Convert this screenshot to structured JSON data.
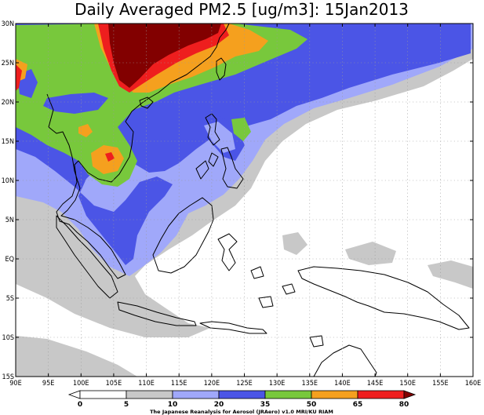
{
  "title": "Daily Averaged PM2.5 [ug/m3]: 15Jan2013",
  "map": {
    "lon_range": [
      90,
      160
    ],
    "lat_range": [
      -15,
      30
    ],
    "lon_ticks": [
      "90E",
      "95E",
      "100E",
      "105E",
      "110E",
      "115E",
      "120E",
      "125E",
      "130E",
      "135E",
      "140E",
      "145E",
      "150E",
      "155E",
      "160E"
    ],
    "lat_ticks": [
      "30N",
      "25N",
      "20N",
      "15N",
      "10N",
      "5N",
      "EQ",
      "5S",
      "10S",
      "15S"
    ],
    "gridlines": "dotted"
  },
  "colorbar": {
    "levels": [
      "0",
      "5",
      "10",
      "20",
      "35",
      "50",
      "65",
      "80"
    ],
    "colors": [
      "#ffffff",
      "#ffffff",
      "#c8c8c8",
      "#a0a8fa",
      "#4b55e6",
      "#78c83c",
      "#f5a01e",
      "#ee1e1e",
      "#820000"
    ]
  },
  "credit": "The Japanese Reanalysis for Aerosol (JRAero) v1.0 MRI/KU RIAM"
}
